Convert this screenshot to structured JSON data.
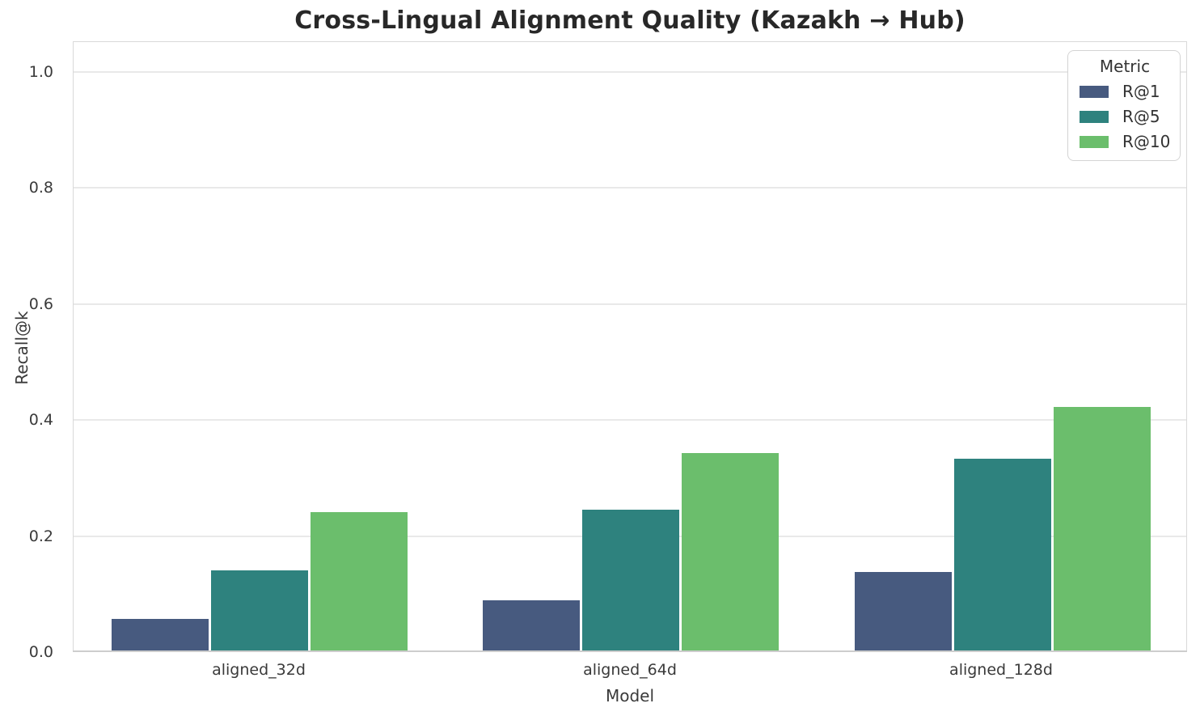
{
  "title": "Cross-Lingual Alignment Quality (Kazakh → Hub)",
  "chart_data": {
    "type": "bar",
    "title": "Cross-Lingual Alignment Quality (Kazakh → Hub)",
    "categories": [
      "aligned_32d",
      "aligned_64d",
      "aligned_128d"
    ],
    "series": [
      {
        "name": "R@1",
        "color": "#475a7f",
        "values": [
          0.055,
          0.087,
          0.135
        ]
      },
      {
        "name": "R@5",
        "color": "#2e827e",
        "values": [
          0.138,
          0.242,
          0.33
        ]
      },
      {
        "name": "R@10",
        "color": "#6bbe6c",
        "values": [
          0.238,
          0.34,
          0.42
        ]
      }
    ],
    "xlabel": "Model",
    "ylabel": "Recall@k",
    "ylim": [
      0,
      1.053
    ],
    "yticks": [
      0.0,
      0.2,
      0.4,
      0.6,
      0.8,
      1.0
    ],
    "ytick_labels": [
      "0.0",
      "0.2",
      "0.4",
      "0.6",
      "0.8",
      "1.0"
    ],
    "grid": true,
    "legend_title": "Metric",
    "legend_position": "upper right"
  }
}
